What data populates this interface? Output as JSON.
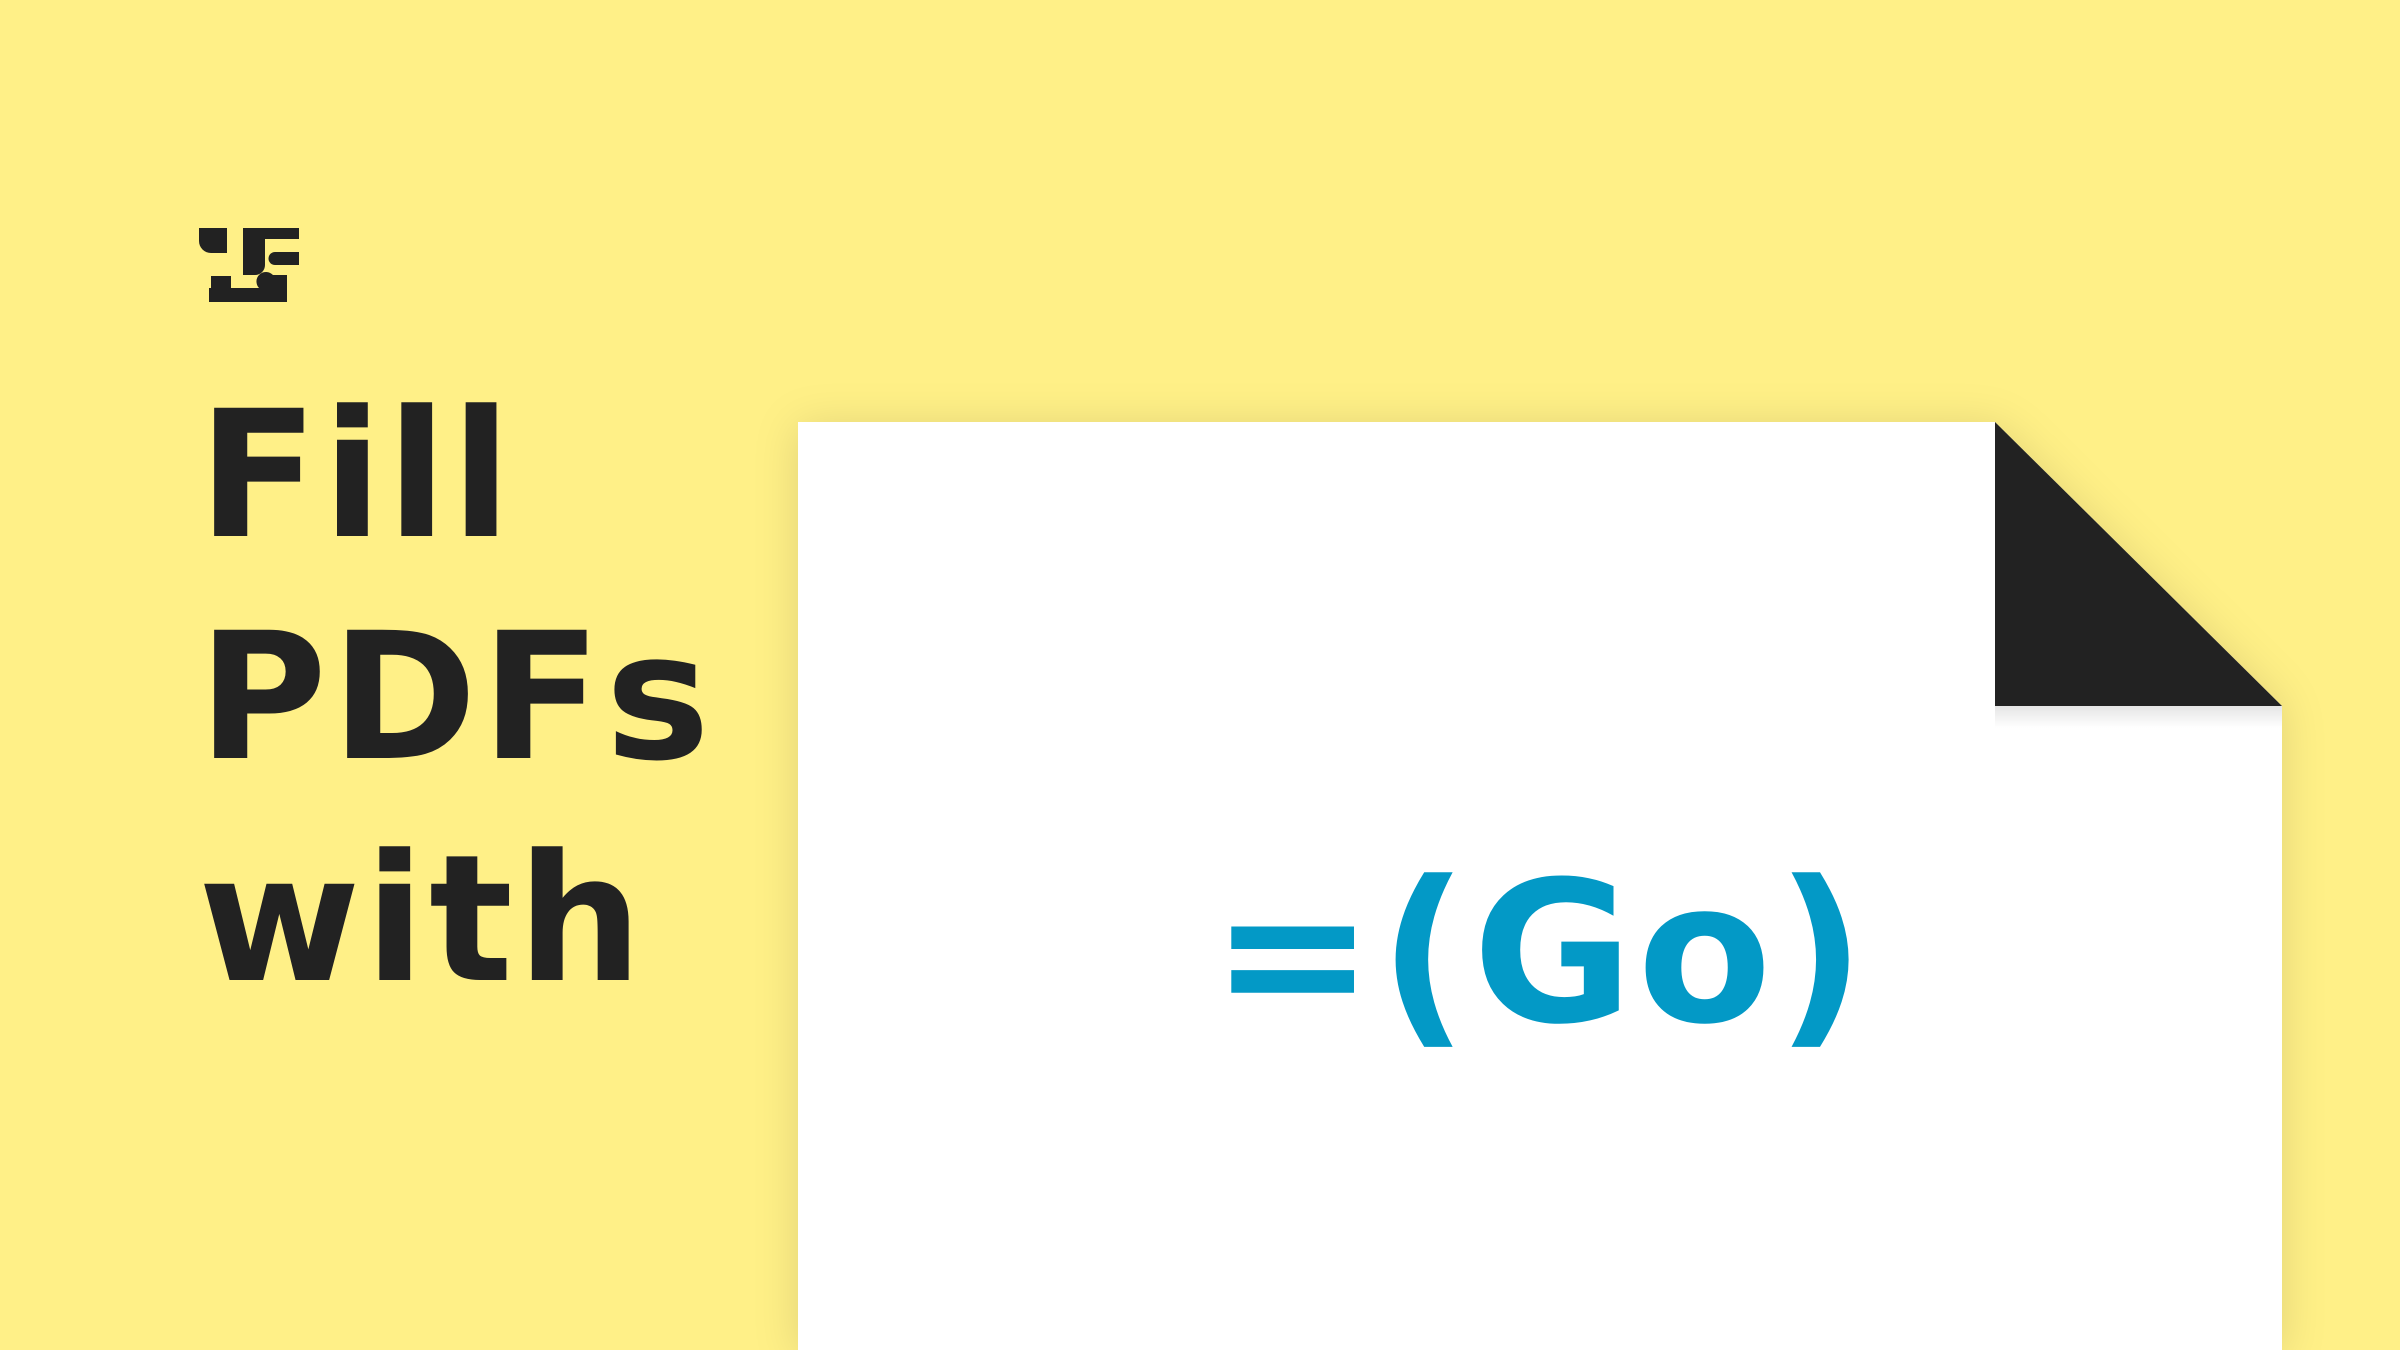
{
  "logo": {
    "icon": "ui-logo-icon",
    "color": "#222222"
  },
  "headline": {
    "lines": [
      "Fill",
      "PDFs",
      "with"
    ],
    "color": "#222222"
  },
  "document": {
    "icon": "pdf-page-icon",
    "formula": "=(Go)",
    "formula_color": "#0399C6",
    "corner_color": "#222222"
  },
  "colors": {
    "background": "#FFF087",
    "page": "#FFFFFF"
  }
}
